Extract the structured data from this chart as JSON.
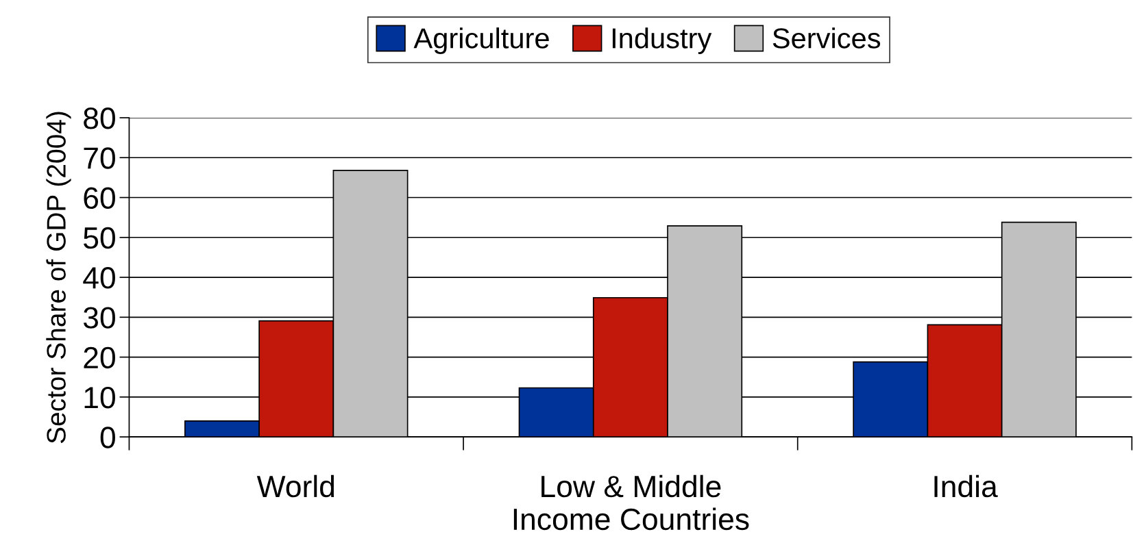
{
  "chart_data": {
    "type": "bar",
    "ylabel": "Sector Share of GDP (2004)",
    "categories": [
      "World",
      "Low & Middle\nIncome Countries",
      "India"
    ],
    "series": [
      {
        "name": "Agriculture",
        "color": "#003399",
        "values": [
          4.0,
          12.3,
          18.8
        ]
      },
      {
        "name": "Industry",
        "color": "#c2180c",
        "values": [
          29.1,
          34.9,
          28.1
        ]
      },
      {
        "name": "Services",
        "color": "#c0c0c0",
        "values": [
          66.8,
          52.9,
          53.8
        ]
      }
    ],
    "ylim": [
      0,
      80
    ],
    "yticks": [
      0,
      10,
      20,
      30,
      40,
      50,
      60,
      70,
      80
    ],
    "grid": "y",
    "legend": "top"
  }
}
